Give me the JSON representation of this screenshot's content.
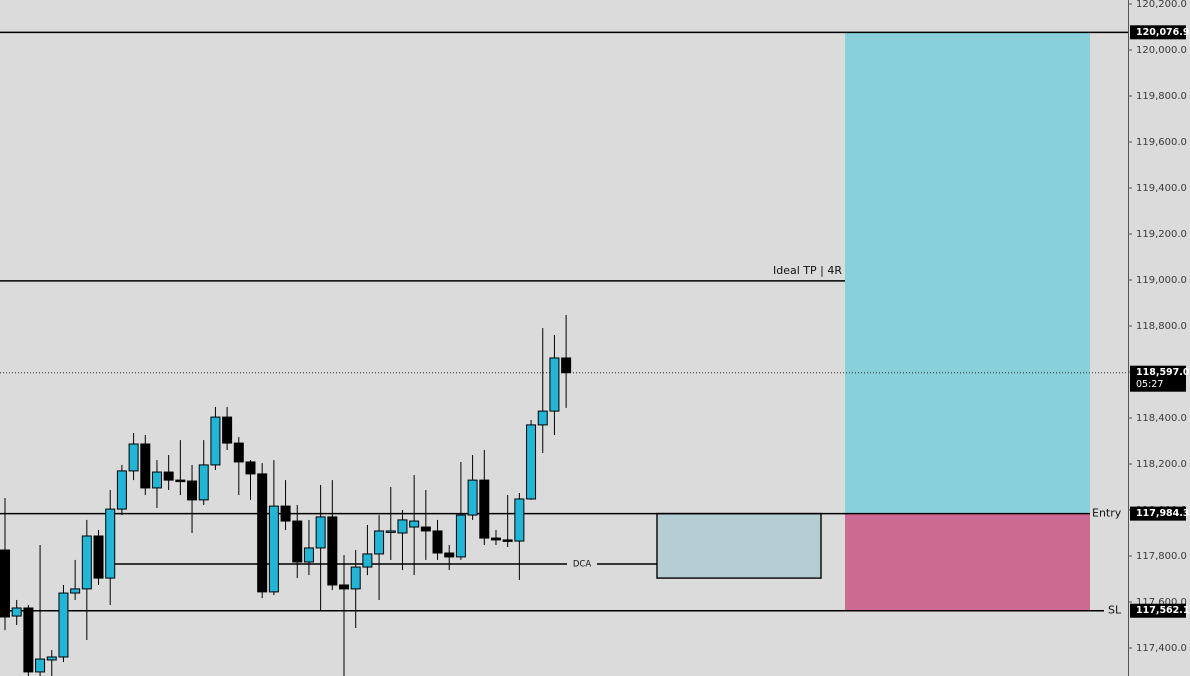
{
  "chart_data": {
    "type": "candlestick",
    "ylim": [
      117278.3,
      120217.4
    ],
    "yticks": [
      {
        "value": 117400,
        "label": "117,400.0"
      },
      {
        "value": 117600,
        "label": "117,600.0"
      },
      {
        "value": 117800,
        "label": "117,800.0"
      },
      {
        "value": 118000,
        "label": "118,000.0"
      },
      {
        "value": 118200,
        "label": "118,200.0"
      },
      {
        "value": 118400,
        "label": "118,400.0"
      },
      {
        "value": 118600,
        "label": "118,600.0"
      },
      {
        "value": 118800,
        "label": "118,800.0"
      },
      {
        "value": 119000,
        "label": "119,000.0"
      },
      {
        "value": 119200,
        "label": "119,200.0"
      },
      {
        "value": 119400,
        "label": "119,400.0"
      },
      {
        "value": 119600,
        "label": "119,600.0"
      },
      {
        "value": 119800,
        "label": "119,800.0"
      },
      {
        "value": 120000,
        "label": "120,000.0"
      },
      {
        "value": 120200,
        "label": "120,200.0"
      }
    ],
    "up_color": "#22b5d6",
    "down_color": "#000000",
    "candles": {
      "open": [
        117826,
        117539,
        117574,
        117296,
        117348,
        117361,
        117639,
        117657,
        117887,
        117704,
        118004,
        118170,
        118287,
        118096,
        118165,
        118130,
        118126,
        118044,
        118196,
        118404,
        118291,
        118209,
        118157,
        117644,
        118017,
        117952,
        117774,
        117835,
        117970,
        117674,
        117657,
        117752,
        117809,
        117904,
        117900,
        117926,
        117926,
        117909,
        117813,
        117796,
        117978,
        118130,
        117878,
        117870,
        117865,
        118048,
        118370,
        118430,
        118661
      ],
      "high": [
        118052,
        117609,
        117587,
        117848,
        117391,
        117674,
        117783,
        117957,
        117913,
        118087,
        118196,
        118335,
        118326,
        118217,
        118239,
        118304,
        118196,
        118304,
        118448,
        118448,
        118317,
        118217,
        118204,
        118217,
        118130,
        118022,
        117957,
        118109,
        118130,
        117804,
        117826,
        117935,
        117978,
        118100,
        118000,
        118152,
        118087,
        117957,
        117848,
        118209,
        118239,
        118261,
        117913,
        118065,
        118074,
        118391,
        118791,
        118761,
        118848
      ],
      "low": [
        117478,
        117500,
        117278,
        117278,
        117278,
        117339,
        117609,
        117435,
        117674,
        117587,
        117978,
        118130,
        118065,
        118009,
        118087,
        118065,
        117900,
        118022,
        118174,
        118261,
        118065,
        118044,
        117617,
        117630,
        117913,
        117704,
        117717,
        117565,
        117652,
        117278,
        117487,
        117717,
        117609,
        117783,
        117739,
        117717,
        117783,
        117783,
        117739,
        117783,
        117957,
        117848,
        117848,
        117839,
        117696,
        118044,
        118248,
        118326,
        118444
      ],
      "close": [
        117535,
        117574,
        117296,
        117352,
        117361,
        117639,
        117657,
        117887,
        117704,
        118004,
        118170,
        118287,
        118096,
        118165,
        118130,
        118126,
        118044,
        118196,
        118404,
        118291,
        118209,
        118157,
        117644,
        118017,
        117952,
        117774,
        117835,
        117970,
        117674,
        117657,
        117752,
        117809,
        117909,
        117909,
        117957,
        117952,
        117909,
        117813,
        117796,
        117978,
        118130,
        117878,
        117870,
        117865,
        118048,
        118370,
        118430,
        118661,
        118597
      ]
    },
    "top_line": {
      "value": 120076.9,
      "label": "120,076.9"
    },
    "tp_line": {
      "value": 118996,
      "label": "Ideal TP | 4R"
    },
    "entry": {
      "value": 117984.3,
      "label": "117,984.3",
      "name": "Entry"
    },
    "stop": {
      "value": 117562.1,
      "label": "117,562.1",
      "name": "SL"
    },
    "last_price": {
      "value": 118597,
      "label": "118,597.0",
      "countdown": "05:27"
    },
    "dca": {
      "value": 117765,
      "label": "DCA"
    },
    "dca_box": {
      "low": 117704
    },
    "target_color": "#89d1da",
    "stop_color": "#cc6a92",
    "box_color": "#b5ced3"
  }
}
